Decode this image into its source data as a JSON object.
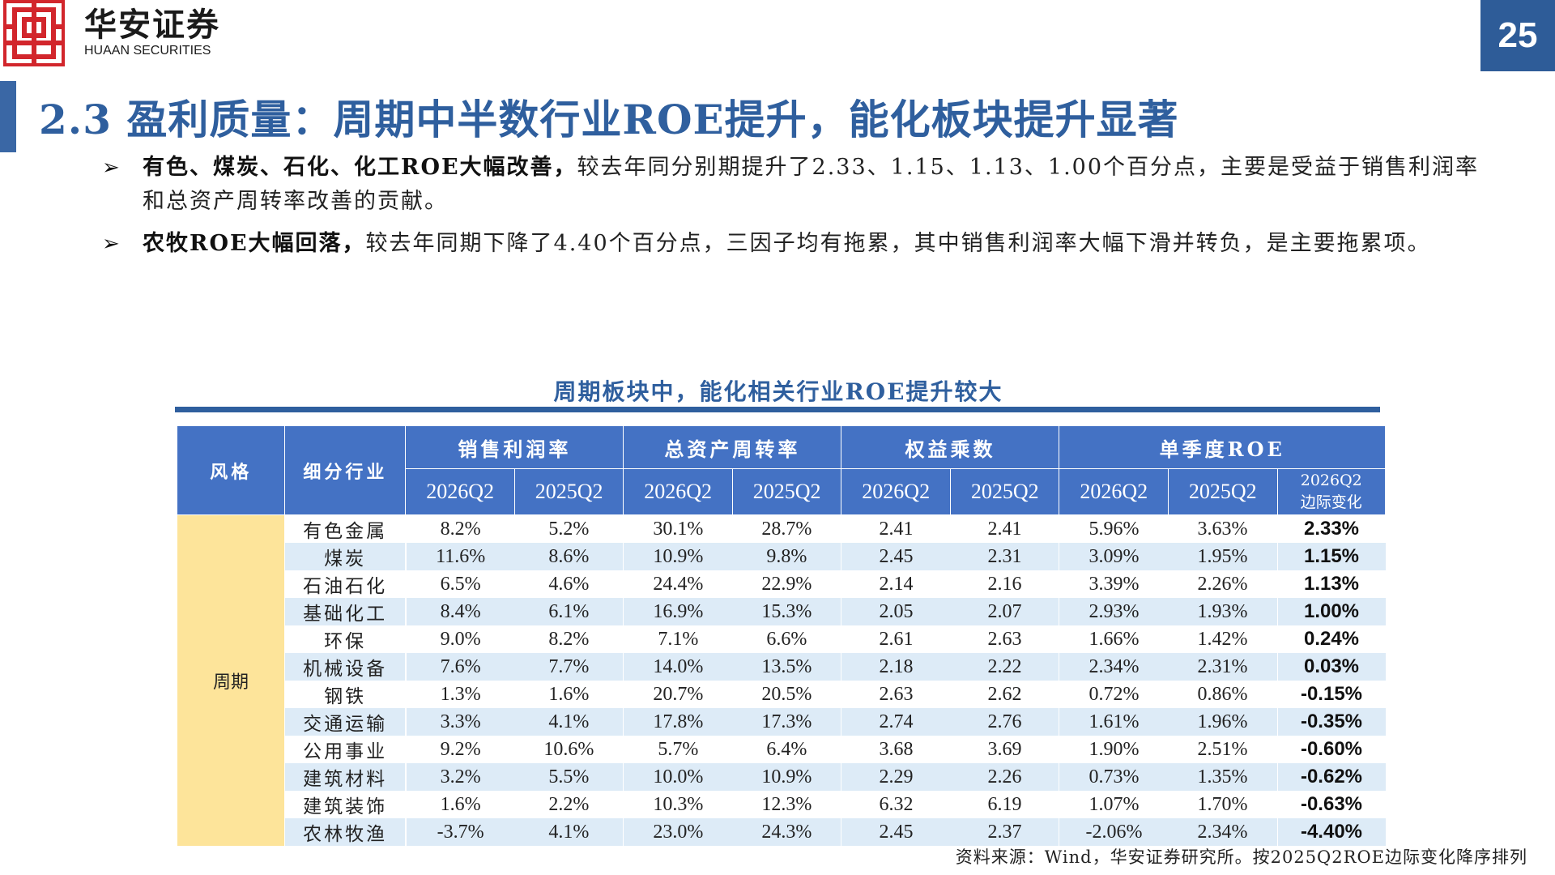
{
  "header": {
    "logo_cn": "华安证券",
    "logo_en": "HUAAN SECURITIES",
    "page_number": "25"
  },
  "title": "2.3 盈利质量：周期中半数行业ROE提升，能化板块提升显著",
  "bullets": [
    {
      "bold": "有色、煤炭、石化、化工ROE大幅改善，",
      "text": "较去年同分别期提升了2.33、1.15、1.13、1.00个百分点，主要是受益于销售利润率和总资产周转率改善的贡献。"
    },
    {
      "bold": "农牧ROE大幅回落，",
      "text": "较去年同期下降了4.40个百分点，三因子均有拖累，其中销售利润率大幅下滑并转负，是主要拖累项。"
    }
  ],
  "table": {
    "title": "周期板块中，能化相关行业ROE提升较大",
    "headers": {
      "style": "风格",
      "industry": "细分行业",
      "groups": [
        "销售利润率",
        "总资产周转率",
        "权益乘数",
        "单季度ROE"
      ],
      "sub": [
        "2026Q2",
        "2025Q2",
        "2026Q2",
        "2025Q2",
        "2026Q2",
        "2025Q2",
        "2026Q2",
        "2025Q2"
      ],
      "change_line1": "2026Q2",
      "change_line2": "边际变化"
    },
    "style_label": "周期",
    "rows": [
      {
        "industry": "有色金属",
        "c": [
          "8.2%",
          "5.2%",
          "30.1%",
          "28.7%",
          "2.41",
          "2.41",
          "5.96%",
          "3.63%"
        ],
        "chg": "2.33%"
      },
      {
        "industry": "煤炭",
        "c": [
          "11.6%",
          "8.6%",
          "10.9%",
          "9.8%",
          "2.45",
          "2.31",
          "3.09%",
          "1.95%"
        ],
        "chg": "1.15%"
      },
      {
        "industry": "石油石化",
        "c": [
          "6.5%",
          "4.6%",
          "24.4%",
          "22.9%",
          "2.14",
          "2.16",
          "3.39%",
          "2.26%"
        ],
        "chg": "1.13%"
      },
      {
        "industry": "基础化工",
        "c": [
          "8.4%",
          "6.1%",
          "16.9%",
          "15.3%",
          "2.05",
          "2.07",
          "2.93%",
          "1.93%"
        ],
        "chg": "1.00%"
      },
      {
        "industry": "环保",
        "c": [
          "9.0%",
          "8.2%",
          "7.1%",
          "6.6%",
          "2.61",
          "2.63",
          "1.66%",
          "1.42%"
        ],
        "chg": "0.24%"
      },
      {
        "industry": "机械设备",
        "c": [
          "7.6%",
          "7.7%",
          "14.0%",
          "13.5%",
          "2.18",
          "2.22",
          "2.34%",
          "2.31%"
        ],
        "chg": "0.03%"
      },
      {
        "industry": "钢铁",
        "c": [
          "1.3%",
          "1.6%",
          "20.7%",
          "20.5%",
          "2.63",
          "2.62",
          "0.72%",
          "0.86%"
        ],
        "chg": "-0.15%"
      },
      {
        "industry": "交通运输",
        "c": [
          "3.3%",
          "4.1%",
          "17.8%",
          "17.3%",
          "2.74",
          "2.76",
          "1.61%",
          "1.96%"
        ],
        "chg": "-0.35%"
      },
      {
        "industry": "公用事业",
        "c": [
          "9.2%",
          "10.6%",
          "5.7%",
          "6.4%",
          "3.68",
          "3.69",
          "1.90%",
          "2.51%"
        ],
        "chg": "-0.60%"
      },
      {
        "industry": "建筑材料",
        "c": [
          "3.2%",
          "5.5%",
          "10.0%",
          "10.9%",
          "2.29",
          "2.26",
          "0.73%",
          "1.35%"
        ],
        "chg": "-0.62%"
      },
      {
        "industry": "建筑装饰",
        "c": [
          "1.6%",
          "2.2%",
          "10.3%",
          "12.3%",
          "6.32",
          "6.19",
          "1.07%",
          "1.70%"
        ],
        "chg": "-0.63%"
      },
      {
        "industry": "农林牧渔",
        "c": [
          "-3.7%",
          "4.1%",
          "23.0%",
          "24.3%",
          "2.45",
          "2.37",
          "-2.06%",
          "2.34%"
        ],
        "chg": "-4.40%"
      }
    ]
  },
  "source": "资料来源：Wind，华安证券研究所。按2025Q2ROE边际变化降序排列",
  "colors": {
    "brand_red": "#d2262c",
    "title_blue": "#2f5f9e",
    "header_blue": "#4472c4",
    "stripe": "#ddebf7",
    "style_yellow": "#fde49a"
  }
}
